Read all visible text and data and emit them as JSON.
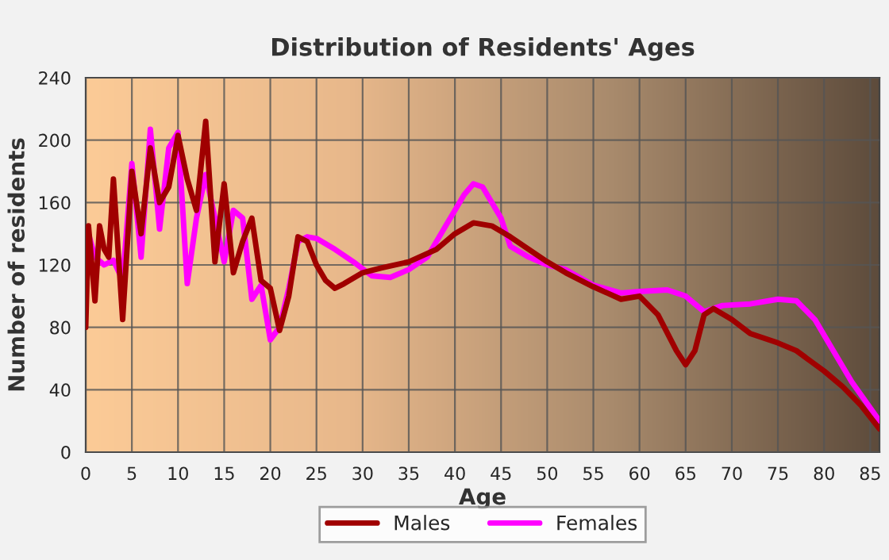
{
  "chart_data": {
    "type": "line",
    "title": "Distribution of Residents' Ages",
    "xlabel": "Age",
    "ylabel": "Number of residents",
    "xlim": [
      0,
      86
    ],
    "xticks": [
      0,
      5,
      10,
      15,
      20,
      25,
      30,
      35,
      40,
      45,
      50,
      55,
      60,
      65,
      70,
      75,
      80,
      85
    ],
    "ylim": [
      0,
      240
    ],
    "yticks": [
      0,
      40,
      80,
      120,
      160,
      200,
      240
    ],
    "grid": true,
    "legend": "bottom",
    "line_style": "solid",
    "marker": "none",
    "series": [
      {
        "name": "Males",
        "color": "#a00000",
        "x": [
          0,
          0.3,
          1,
          1.5,
          2,
          2.5,
          3,
          4,
          5,
          6,
          7,
          8,
          9,
          10,
          11,
          12,
          13,
          14,
          15,
          16,
          17,
          18,
          19,
          20,
          21,
          22,
          23,
          24,
          25,
          26,
          27,
          28,
          30,
          32,
          35,
          38,
          40,
          42,
          44,
          46,
          48,
          50,
          52,
          55,
          58,
          60,
          62,
          64,
          65,
          66,
          67,
          68,
          70,
          72,
          75,
          77,
          80,
          82,
          84,
          86
        ],
        "values": [
          80,
          145,
          97,
          145,
          130,
          125,
          175,
          85,
          180,
          140,
          195,
          160,
          170,
          203,
          175,
          155,
          212,
          122,
          172,
          115,
          135,
          150,
          110,
          105,
          78,
          100,
          138,
          135,
          120,
          110,
          105,
          108,
          115,
          118,
          122,
          130,
          140,
          147,
          145,
          138,
          130,
          122,
          115,
          106,
          98,
          100,
          88,
          65,
          56,
          65,
          88,
          92,
          85,
          76,
          70,
          65,
          52,
          42,
          30,
          15
        ]
      },
      {
        "name": "Females",
        "color": "#ff00ff",
        "x": [
          0.3,
          1,
          2,
          3,
          4,
          5,
          6,
          7,
          8,
          9,
          10,
          11,
          12,
          13,
          14,
          15,
          16,
          17,
          18,
          19,
          20,
          21,
          22,
          23,
          24,
          25,
          27,
          29,
          31,
          33,
          35,
          37,
          39,
          41,
          42,
          43,
          45,
          46,
          48,
          50,
          52,
          55,
          58,
          60,
          63,
          65,
          67,
          69,
          72,
          75,
          77,
          79,
          81,
          83,
          86
        ],
        "values": [
          140,
          125,
          120,
          123,
          110,
          185,
          125,
          207,
          143,
          195,
          205,
          108,
          150,
          178,
          150,
          122,
          155,
          150,
          98,
          107,
          72,
          80,
          105,
          135,
          138,
          137,
          130,
          122,
          113,
          112,
          117,
          125,
          145,
          165,
          172,
          170,
          150,
          132,
          125,
          120,
          117,
          107,
          102,
          103,
          104,
          100,
          90,
          94,
          95,
          98,
          97,
          85,
          65,
          45,
          20
        ]
      }
    ]
  }
}
